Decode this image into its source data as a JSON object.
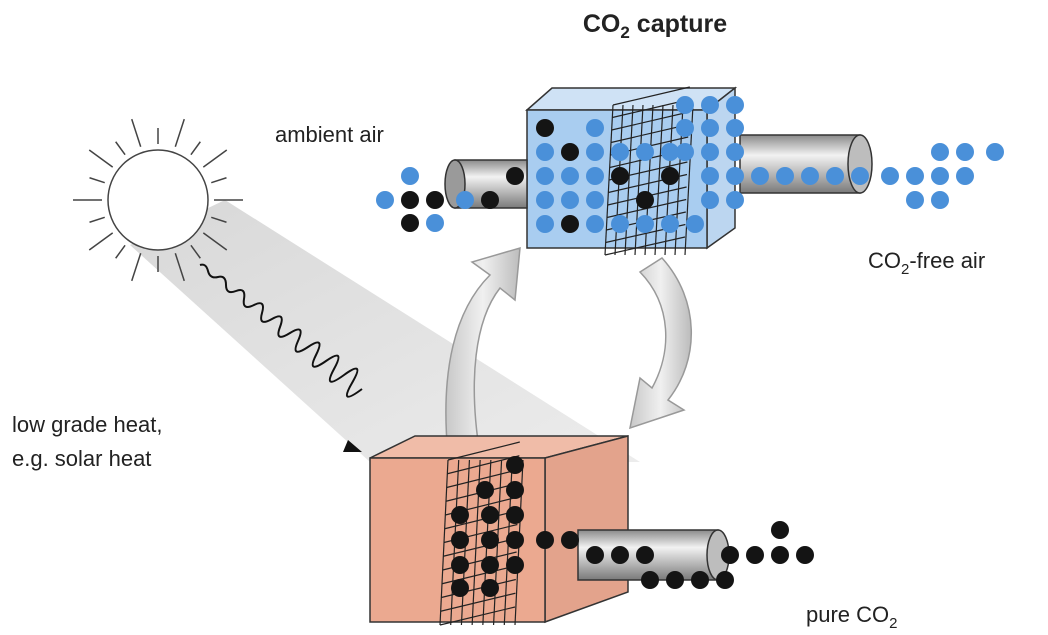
{
  "title": {
    "prefix": "CO",
    "subscript": "2",
    "suffix": " capture"
  },
  "labels": {
    "ambient_air": "ambient air",
    "co2_free_air": {
      "prefix": "CO",
      "subscript": "2",
      "suffix": "-free air"
    },
    "heat": [
      "low grade heat,",
      "e.g. solar heat"
    ],
    "pure_co2": {
      "prefix": "pure CO",
      "subscript": "2"
    }
  }
}
